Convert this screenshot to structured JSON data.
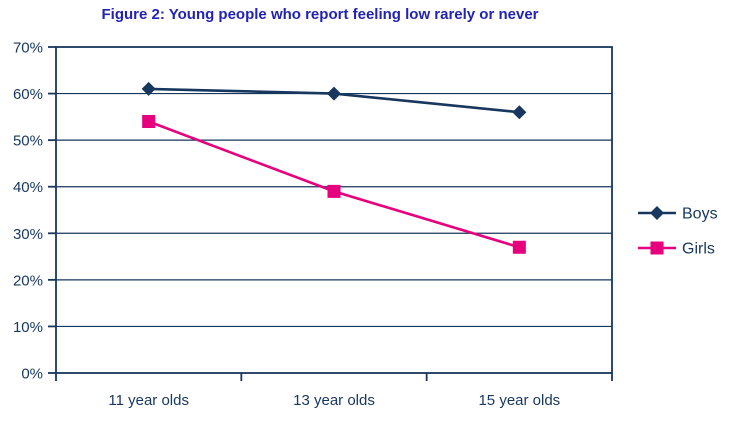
{
  "title": "Figure 2: Young people who report feeling low rarely or never",
  "colors": {
    "title_text": "#2323b2",
    "axis_and_text": "#17375E",
    "boys_series": "#17375E",
    "girls_series": "#E6007E",
    "background": "#FFFFFF"
  },
  "chart_data": {
    "type": "line",
    "title": "Figure 2: Young people who report feeling low rarely or never",
    "categories": [
      "11 year olds",
      "13 year olds",
      "15 year olds"
    ],
    "series": [
      {
        "name": "Boys",
        "values": [
          61,
          60,
          56
        ],
        "color": "#17375E",
        "marker": "diamond"
      },
      {
        "name": "Girls",
        "values": [
          54,
          39,
          27
        ],
        "color": "#E6007E",
        "marker": "square"
      }
    ],
    "xlabel": "",
    "ylabel": "",
    "ylim": [
      0,
      70
    ],
    "ytick_step": 10,
    "ytick_labels": [
      "0%",
      "10%",
      "20%",
      "30%",
      "40%",
      "50%",
      "60%",
      "70%"
    ],
    "grid": true,
    "legend_position": "right"
  }
}
